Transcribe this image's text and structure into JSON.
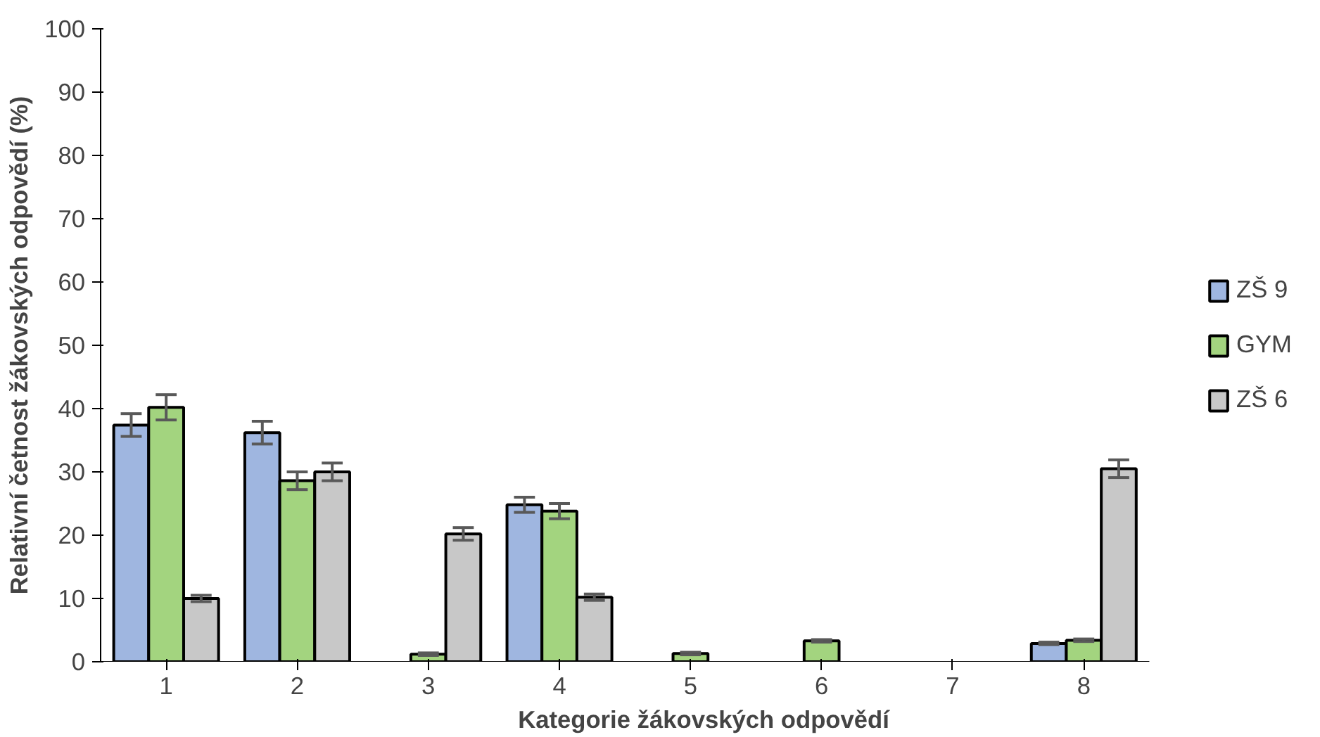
{
  "chart_data": {
    "type": "bar",
    "categories": [
      "1",
      "2",
      "3",
      "4",
      "5",
      "6",
      "7",
      "8"
    ],
    "xlabel": "Kategorie žákovských odpovědí",
    "ylabel": "Relativní četnost žákovských odpovědí (%)",
    "ylim": [
      0,
      100
    ],
    "yticks": [
      0,
      10,
      20,
      30,
      40,
      50,
      60,
      70,
      80,
      90,
      100
    ],
    "grid": false,
    "legend": "right",
    "series": [
      {
        "name": "ZŠ 9",
        "color": "#9fb6e0",
        "values": [
          37.4,
          36.2,
          null,
          24.8,
          null,
          null,
          null,
          2.9
        ],
        "errors": [
          1.8,
          1.8,
          null,
          1.2,
          null,
          null,
          null,
          0.2
        ]
      },
      {
        "name": "GYM",
        "color": "#a3d47f",
        "values": [
          40.2,
          28.6,
          1.2,
          23.8,
          1.3,
          3.3,
          null,
          3.4
        ],
        "errors": [
          2.0,
          1.4,
          0.2,
          1.2,
          0.2,
          0.2,
          null,
          0.2
        ]
      },
      {
        "name": "ZŠ 6",
        "color": "#c8c8c8",
        "values": [
          10.0,
          30.0,
          20.2,
          10.2,
          null,
          null,
          null,
          30.5
        ],
        "errors": [
          0.5,
          1.4,
          1.0,
          0.5,
          null,
          null,
          null,
          1.4
        ]
      }
    ]
  }
}
